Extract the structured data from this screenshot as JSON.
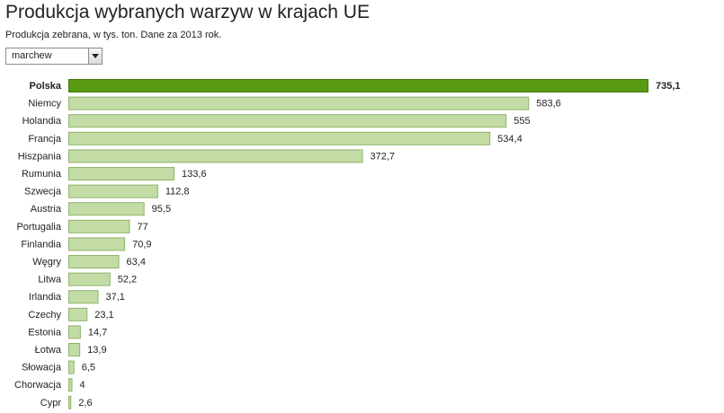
{
  "header": {
    "title": "Produkcja wybranych warzyw w krajach UE",
    "subtitle": "Produkcja zebrana, w tys. ton. Dane za 2013 rok."
  },
  "selector": {
    "selected": "marchew"
  },
  "colors": {
    "highlight_fill": "#5a9a12",
    "highlight_stroke": "#3f7a08",
    "bar_fill": "#c3dca5",
    "bar_stroke": "#8fb36b"
  },
  "chart_data": {
    "type": "bar",
    "orientation": "horizontal",
    "highlight": "Polska",
    "categories": [
      "Polska",
      "Niemcy",
      "Holandia",
      "Francja",
      "Hiszpania",
      "Rumunia",
      "Szwecja",
      "Austria",
      "Portugalia",
      "Finlandia",
      "Węgry",
      "Litwa",
      "Irlandia",
      "Czechy",
      "Estonia",
      "Łotwa",
      "Słowacja",
      "Chorwacja",
      "Cypr"
    ],
    "values": [
      735.1,
      583.6,
      555,
      534.4,
      372.7,
      133.6,
      112.8,
      95.5,
      77,
      70.9,
      63.4,
      52.2,
      37.1,
      23.1,
      14.7,
      13.9,
      6.5,
      4,
      2.6
    ],
    "value_labels": [
      "735,1",
      "583,6",
      "555",
      "534,4",
      "372,7",
      "133,6",
      "112,8",
      "95,5",
      "77",
      "70,9",
      "63,4",
      "52,2",
      "37,1",
      "23,1",
      "14,7",
      "13,9",
      "6,5",
      "4",
      "2,6"
    ],
    "xlim": [
      0,
      735.1
    ]
  }
}
